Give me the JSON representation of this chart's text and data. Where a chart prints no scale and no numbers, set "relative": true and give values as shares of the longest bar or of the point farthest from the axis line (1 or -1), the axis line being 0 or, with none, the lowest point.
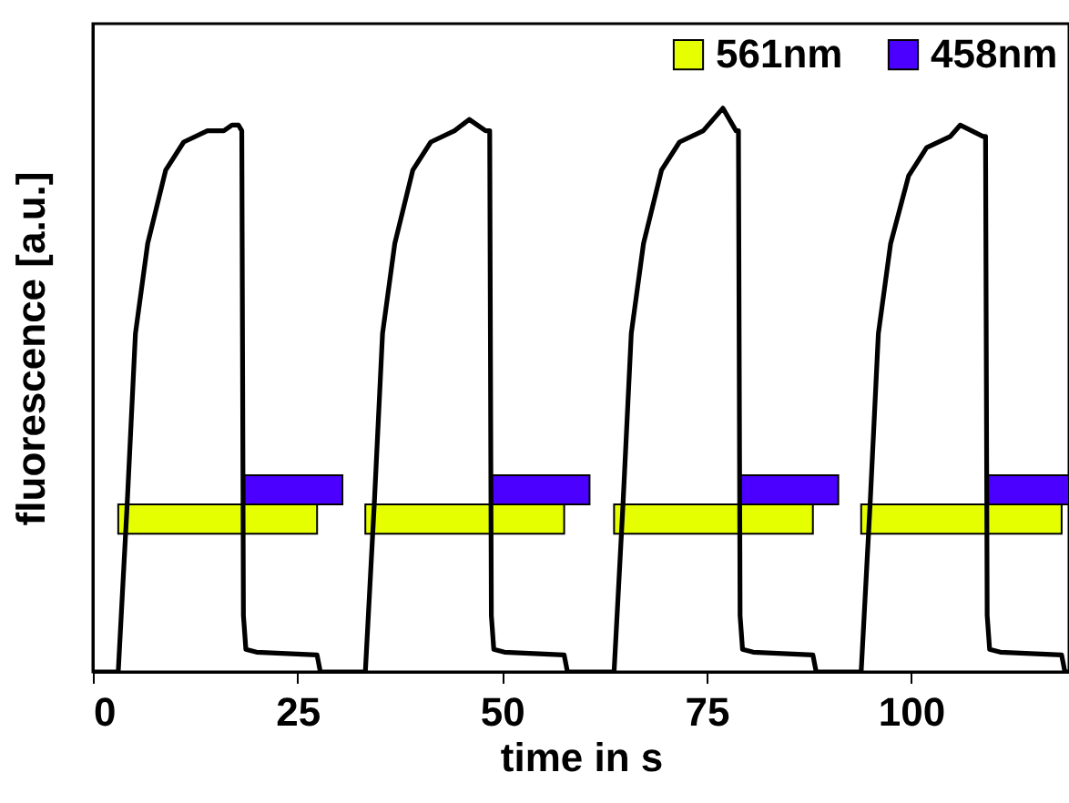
{
  "chart_data": {
    "type": "line",
    "relative": true,
    "xlabel": "time in s",
    "ylabel": "fluorescence [a.u.]",
    "xlim": [
      0,
      119.3
    ],
    "xticks": [
      0,
      25,
      50,
      75,
      100
    ],
    "legend": "top right",
    "series": [
      {
        "color": "#000000",
        "x": [
          0,
          3.1,
          4.2,
          5.2,
          6.7,
          8.9,
          11.1,
          14,
          16,
          17,
          17.8,
          18.2,
          18.4,
          18.7,
          20,
          27.4,
          27.8,
          33.3,
          34.4,
          35.4,
          36.9,
          39.1,
          41.3,
          44.2,
          46,
          48,
          48.5,
          48.7,
          49,
          50.3,
          57.6,
          58,
          63.7,
          64.8,
          65.8,
          67.3,
          69.5,
          71.7,
          74.6,
          77,
          78.6,
          78.9,
          79.1,
          79.4,
          80.7,
          88,
          88.4,
          93.9,
          95,
          96,
          97.5,
          99.7,
          101.9,
          104.8,
          106,
          108.8,
          109.1,
          109.3,
          109.6,
          110.9,
          118.4,
          118.8,
          119.3
        ],
        "values": [
          0,
          0,
          0.3,
          0.6,
          0.76,
          0.89,
          0.94,
          0.96,
          0.96,
          0.97,
          0.97,
          0.96,
          0.1,
          0.04,
          0.035,
          0.03,
          0,
          0,
          0.3,
          0.6,
          0.76,
          0.89,
          0.94,
          0.96,
          0.98,
          0.96,
          0.96,
          0.1,
          0.04,
          0.035,
          0.03,
          0,
          0,
          0.3,
          0.6,
          0.76,
          0.89,
          0.94,
          0.96,
          1.0,
          0.96,
          0.96,
          0.1,
          0.04,
          0.035,
          0.03,
          0,
          0,
          0.3,
          0.6,
          0.76,
          0.88,
          0.93,
          0.95,
          0.97,
          0.95,
          0.95,
          0.1,
          0.04,
          0.035,
          0.03,
          0,
          0
        ]
      }
    ],
    "bands": [
      {
        "axis": "x",
        "from": 3.1,
        "to": 27.4,
        "label": "561nm",
        "color": "#e5ff00"
      },
      {
        "axis": "x",
        "from": 18.5,
        "to": 30.5,
        "label": "458nm",
        "color": "#4b00ff"
      },
      {
        "axis": "x",
        "from": 33.3,
        "to": 57.6,
        "color": "#e5ff00"
      },
      {
        "axis": "x",
        "from": 48.7,
        "to": 60.7,
        "color": "#4b00ff"
      },
      {
        "axis": "x",
        "from": 63.7,
        "to": 88,
        "color": "#e5ff00"
      },
      {
        "axis": "x",
        "from": 79.1,
        "to": 91.1,
        "color": "#4b00ff"
      },
      {
        "axis": "x",
        "from": 93.9,
        "to": 118.4,
        "color": "#e5ff00"
      },
      {
        "axis": "x",
        "from": 109.3,
        "to": 119.3,
        "color": "#4b00ff"
      }
    ]
  }
}
